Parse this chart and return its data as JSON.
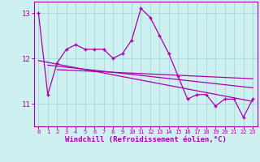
{
  "x": [
    0,
    1,
    2,
    3,
    4,
    5,
    6,
    7,
    8,
    9,
    10,
    11,
    12,
    13,
    14,
    15,
    16,
    17,
    18,
    19,
    20,
    21,
    22,
    23
  ],
  "y_main": [
    13.0,
    11.2,
    11.9,
    12.2,
    12.3,
    12.2,
    12.2,
    12.2,
    12.0,
    12.1,
    12.4,
    13.1,
    12.9,
    12.5,
    12.1,
    11.6,
    11.1,
    11.2,
    11.2,
    10.95,
    11.1,
    11.1,
    10.7,
    11.1
  ],
  "trend1_x": [
    0,
    23
  ],
  "trend1_y": [
    11.95,
    11.05
  ],
  "trend2_x": [
    1,
    23
  ],
  "trend2_y": [
    11.85,
    11.35
  ],
  "trend3_x": [
    2,
    23
  ],
  "trend3_y": [
    11.75,
    11.55
  ],
  "color": "#aa00aa",
  "bg_color": "#cff0f0",
  "grid_color": "#aadddd",
  "xlabel": "Windchill (Refroidissement éolien,°C)",
  "xlim": [
    -0.5,
    23.5
  ],
  "ylim": [
    10.5,
    13.25
  ],
  "yticks": [
    11,
    12,
    13
  ],
  "xticks": [
    0,
    1,
    2,
    3,
    4,
    5,
    6,
    7,
    8,
    9,
    10,
    11,
    12,
    13,
    14,
    15,
    16,
    17,
    18,
    19,
    20,
    21,
    22,
    23
  ]
}
